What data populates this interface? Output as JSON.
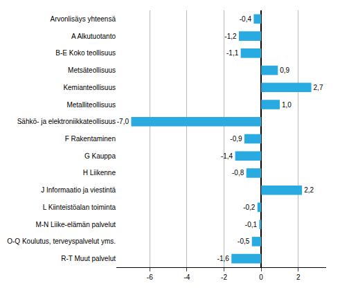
{
  "chart_data": {
    "type": "bar",
    "orientation": "horizontal",
    "categories": [
      "Arvonlisäys yhteensä",
      "A Alkutuotanto",
      "B-E Koko teollisuus",
      "Metsäteollisuus",
      "Kemianteollisuus",
      "Metalliteollisuus",
      "Sähkö- ja elektroniikkateollisuus",
      "F Rakentaminen",
      "G Kauppa",
      "H Liikenne",
      "J Informaatio ja viestintä",
      "L Kiinteistöalan toiminta",
      "M-N Liike-elämän palvelut",
      "O-Q Koulutus, terveyspalvelut yms.",
      "R-T Muut palvelut"
    ],
    "values": [
      -0.4,
      -1.2,
      -1.1,
      0.9,
      2.7,
      1.0,
      -7.0,
      -0.9,
      -1.4,
      -0.8,
      2.2,
      -0.2,
      -0.1,
      -0.5,
      -1.6
    ],
    "value_labels": [
      "-0,4",
      "-1,2",
      "-1,1",
      "0,9",
      "2,7",
      "1,0",
      "-7,0",
      "-0,9",
      "-1,4",
      "-0,8",
      "2,2",
      "-0,2",
      "-0,1",
      "-0,5",
      "-1,6"
    ],
    "color": "#29abe2",
    "xlim": [
      -7.8,
      3.5
    ],
    "xticks": [
      -6,
      -4,
      -2,
      0,
      2
    ],
    "grid": true,
    "data_labels": true
  }
}
